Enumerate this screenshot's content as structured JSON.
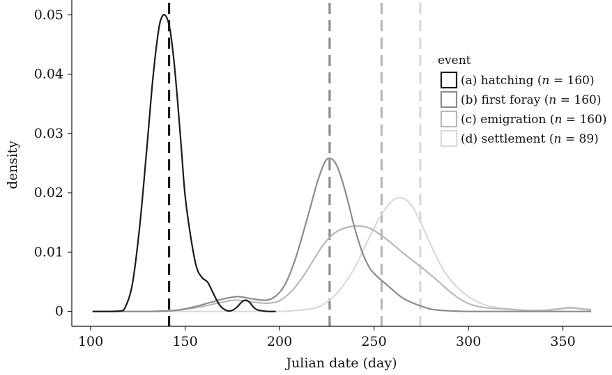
{
  "chart_data": {
    "type": "line",
    "title": "",
    "xlabel": "Julian date (day)",
    "ylabel": "density",
    "xlim": [
      90,
      376
    ],
    "ylim": [
      -0.0025,
      0.0525
    ],
    "xticks": [
      100,
      150,
      200,
      250,
      300,
      350
    ],
    "xtick_labels": [
      "100",
      "150",
      "200",
      "250",
      "300",
      "350"
    ],
    "yticks": [
      0,
      0.01,
      0.02,
      0.03,
      0.04,
      0.05
    ],
    "ytick_labels": [
      "0",
      "0.01",
      "0.02",
      "0.03",
      "0.04",
      "0.05"
    ],
    "grid": false,
    "legend": {
      "title": "event",
      "placement": "top-right"
    },
    "series": [
      {
        "name": "(a) hatching (n = 160)",
        "label_prefix": "(a) hatching (",
        "label_n": "n",
        "label_suffix": " = 160)",
        "color": "#1a1a1a",
        "median": 141.5,
        "x": [
          101,
          110,
          116,
          118,
          122,
          126,
          130,
          133,
          136,
          138,
          140,
          142,
          144,
          146,
          148,
          150,
          153,
          156,
          159,
          162,
          165,
          168,
          171,
          174,
          177,
          180,
          182,
          184,
          186,
          188,
          191,
          194,
          198
        ],
        "y": [
          0,
          0,
          0.0001,
          0.0005,
          0.0045,
          0.0145,
          0.0285,
          0.0395,
          0.0475,
          0.0498,
          0.0497,
          0.0475,
          0.0425,
          0.0355,
          0.0275,
          0.0195,
          0.0125,
          0.0075,
          0.0057,
          0.0049,
          0.003,
          0.0012,
          0.0003,
          0.0001,
          0.0006,
          0.0016,
          0.0019,
          0.0016,
          0.0008,
          0.0003,
          0.0001,
          0,
          0
        ]
      },
      {
        "name": "(b) first foray (n = 160)",
        "label_prefix": "(b) first foray (",
        "label_n": "n",
        "label_suffix": " = 160)",
        "color": "#8c8c8c",
        "median": 226.5,
        "x": [
          101,
          130,
          145,
          155,
          162,
          170,
          178,
          186,
          193,
          198,
          203,
          208,
          212,
          216,
          220,
          224,
          227,
          230,
          233,
          236,
          240,
          244,
          248,
          252,
          256,
          260,
          265,
          270,
          275,
          280,
          285,
          290,
          300,
          320,
          365
        ],
        "y": [
          0,
          0,
          0.0002,
          0.0008,
          0.0014,
          0.0021,
          0.0025,
          0.0021,
          0.0019,
          0.0026,
          0.0046,
          0.0085,
          0.0127,
          0.0172,
          0.0218,
          0.0252,
          0.0258,
          0.0248,
          0.0222,
          0.0188,
          0.0138,
          0.0098,
          0.0072,
          0.0058,
          0.0047,
          0.0036,
          0.0023,
          0.0015,
          0.0009,
          0.0004,
          0.0002,
          0.0001,
          0,
          0,
          0
        ]
      },
      {
        "name": "(c) emigration (n = 160)",
        "label_prefix": "(c) emigration (",
        "label_n": "n",
        "label_suffix": " = 160)",
        "color": "#b8b8b8",
        "median": 254,
        "x": [
          101,
          130,
          145,
          155,
          163,
          170,
          176,
          182,
          188,
          194,
          200,
          206,
          212,
          218,
          224,
          230,
          236,
          242,
          248,
          254,
          260,
          266,
          272,
          278,
          284,
          290,
          296,
          302,
          310,
          320,
          330,
          340,
          348,
          354,
          360,
          365
        ],
        "y": [
          0,
          0,
          0.0002,
          0.0006,
          0.0011,
          0.0016,
          0.0019,
          0.0018,
          0.0015,
          0.0014,
          0.0018,
          0.0033,
          0.0057,
          0.0087,
          0.0116,
          0.0134,
          0.0142,
          0.0144,
          0.014,
          0.0128,
          0.0113,
          0.0097,
          0.0082,
          0.0067,
          0.0051,
          0.0034,
          0.002,
          0.0011,
          0.0006,
          0.0004,
          0.0002,
          0.0002,
          0.0004,
          0.0006,
          0.0004,
          0.0002
        ]
      },
      {
        "name": "(d) settlement (n = 89)",
        "label_prefix": "(d) settlement (",
        "label_n": "n",
        "label_suffix": " = 89)",
        "color": "#d9d9d9",
        "median": 274.5,
        "x": [
          101,
          180,
          200,
          210,
          220,
          228,
          234,
          240,
          246,
          252,
          258,
          262,
          266,
          270,
          274,
          278,
          282,
          286,
          290,
          295,
          300,
          305,
          310,
          316,
          322,
          330,
          340,
          348,
          353,
          358,
          365
        ],
        "y": [
          0,
          0,
          0,
          0.0002,
          0.0007,
          0.0023,
          0.0045,
          0.0075,
          0.0115,
          0.0153,
          0.0181,
          0.0191,
          0.019,
          0.0178,
          0.0155,
          0.0127,
          0.0099,
          0.0074,
          0.0055,
          0.0038,
          0.0025,
          0.0016,
          0.001,
          0.0006,
          0.0004,
          0.0002,
          0.0002,
          0.0005,
          0.0007,
          0.0006,
          0.0004
        ]
      }
    ]
  }
}
